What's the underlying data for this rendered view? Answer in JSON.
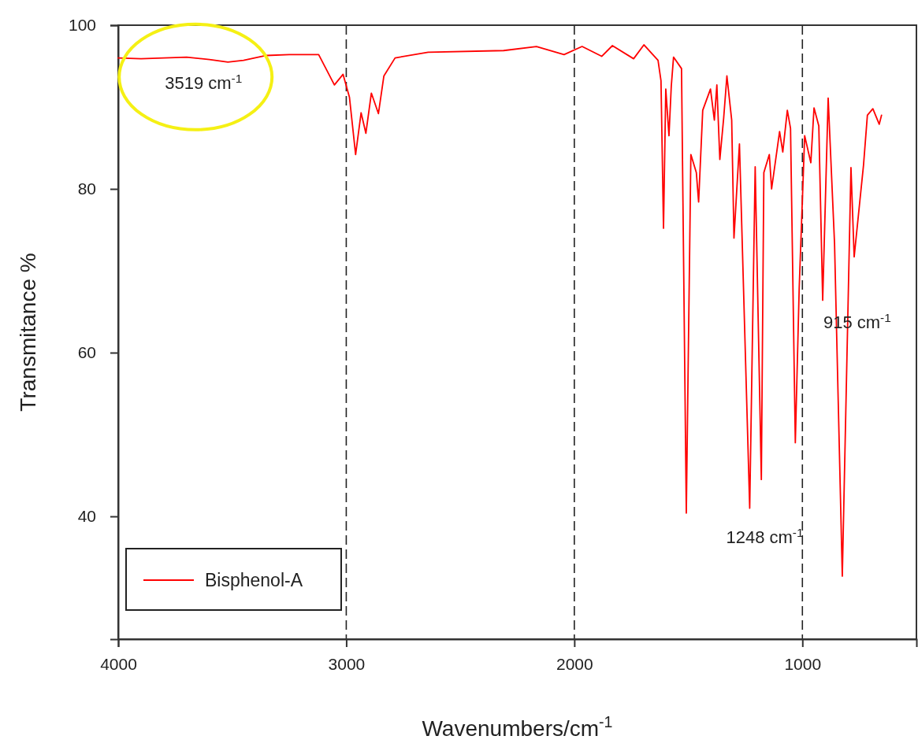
{
  "chart_data": {
    "type": "line",
    "xlabel": "Wavenumbers/cm$^{-1}$",
    "ylabel": "Transmitance %",
    "xlim": [
      4000,
      500
    ],
    "xticks": [
      4000,
      3000,
      2000,
      1000
    ],
    "ylim": [
      25,
      100
    ],
    "yticks": [
      40,
      60,
      80,
      100
    ],
    "grid": "x",
    "legend": "bottom left",
    "marker": "none",
    "line_style": "solid",
    "annotations": [
      {
        "text": "3519 cm$^{-1}$",
        "x": 3519,
        "y": 95.5
      },
      {
        "text": "1248 cm$^{-1}$",
        "x": 1248,
        "y": 41
      },
      {
        "text": "915 cm$^{-1}$",
        "x": 915,
        "y": 66.4
      }
    ],
    "series": [
      {
        "name": "Bisphenol-A",
        "color": "#ff0000",
        "x": [
          4000,
          3900,
          3800,
          3700,
          3600,
          3519,
          3450,
          3350,
          3250,
          3121,
          3052,
          3014,
          2986,
          2959,
          2935,
          2914,
          2890,
          2859,
          2835,
          2786,
          2641,
          2310,
          2166,
          2045,
          1966,
          1880,
          1833,
          1740,
          1695,
          1633,
          1620,
          1609,
          1599,
          1585,
          1575,
          1565,
          1530,
          1509,
          1489,
          1465,
          1455,
          1437,
          1403,
          1386,
          1375,
          1362,
          1345,
          1331,
          1310,
          1300,
          1276,
          1231,
          1207,
          1180,
          1169,
          1145,
          1135,
          1100,
          1086,
          1066,
          1052,
          1031,
          1014,
          990,
          963,
          949,
          928,
          911,
          887,
          859,
          825,
          787,
          773,
          732,
          715,
          691,
          663,
          653
        ],
        "values": [
          96.0,
          95.9,
          96.0,
          96.1,
          95.8,
          95.5,
          95.7,
          96.3,
          96.4,
          96.4,
          92.7,
          94.0,
          91.2,
          84.2,
          89.3,
          86.8,
          91.7,
          89.2,
          93.8,
          96.0,
          96.7,
          96.9,
          97.4,
          96.4,
          97.4,
          96.2,
          97.5,
          95.9,
          97.6,
          95.7,
          93.2,
          75.2,
          92.2,
          86.5,
          92.5,
          96.1,
          94.7,
          40.4,
          84.2,
          82.0,
          78.4,
          89.6,
          92.2,
          88.4,
          92.7,
          83.6,
          88.7,
          93.8,
          88.4,
          74.0,
          85.5,
          41.0,
          82.7,
          44.5,
          82.0,
          84.2,
          80.0,
          87.0,
          84.5,
          89.6,
          87.4,
          49.0,
          67.9,
          86.5,
          83.2,
          89.9,
          87.7,
          66.4,
          91.1,
          73.3,
          32.7,
          82.6,
          71.7,
          82.9,
          89.0,
          89.8,
          87.9,
          89.0
        ]
      }
    ]
  }
}
